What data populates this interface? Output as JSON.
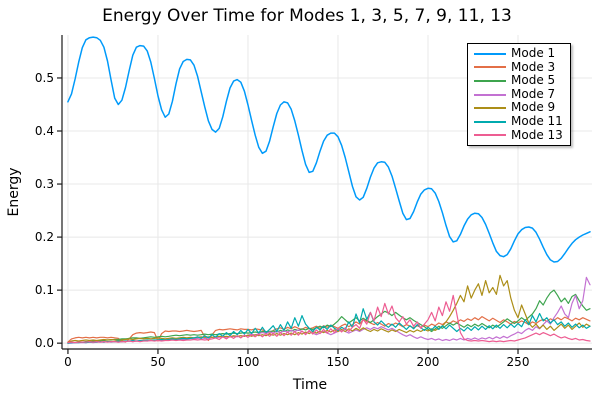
{
  "chart_data": {
    "type": "line",
    "title": "Energy Over Time for Modes 1, 3, 5, 7, 9, 11, 13",
    "xlabel": "Time",
    "ylabel": "Energy",
    "xlim": [
      -3.3,
      291.1
    ],
    "ylim": [
      -0.011,
      0.581
    ],
    "xticks": [
      0,
      50,
      100,
      150,
      200,
      250
    ],
    "xtick_labels": [
      "0",
      "50",
      "100",
      "150",
      "200",
      "250"
    ],
    "yticks": [
      0.0,
      0.1,
      0.2,
      0.3,
      0.4,
      0.5
    ],
    "ytick_labels": [
      "0.0",
      "0.1",
      "0.2",
      "0.3",
      "0.4",
      "0.5"
    ],
    "grid": true,
    "grid_color": "#e8e8e8",
    "spine_color": "#1a1a1a",
    "legend_position": "top-right",
    "x_start": 0,
    "x_step": 2,
    "series": [
      {
        "name": "Mode 1",
        "color": "#009AFA",
        "values": [
          0.455,
          0.47,
          0.498,
          0.53,
          0.557,
          0.572,
          0.576,
          0.577,
          0.576,
          0.571,
          0.558,
          0.532,
          0.496,
          0.462,
          0.45,
          0.458,
          0.482,
          0.514,
          0.543,
          0.558,
          0.561,
          0.56,
          0.551,
          0.53,
          0.499,
          0.466,
          0.44,
          0.426,
          0.432,
          0.456,
          0.489,
          0.517,
          0.531,
          0.535,
          0.534,
          0.524,
          0.503,
          0.474,
          0.445,
          0.419,
          0.403,
          0.398,
          0.405,
          0.427,
          0.456,
          0.481,
          0.494,
          0.497,
          0.492,
          0.475,
          0.449,
          0.42,
          0.392,
          0.369,
          0.358,
          0.362,
          0.381,
          0.408,
          0.433,
          0.449,
          0.455,
          0.453,
          0.441,
          0.419,
          0.392,
          0.363,
          0.337,
          0.322,
          0.324,
          0.34,
          0.362,
          0.381,
          0.392,
          0.396,
          0.396,
          0.389,
          0.373,
          0.35,
          0.323,
          0.296,
          0.276,
          0.27,
          0.275,
          0.292,
          0.313,
          0.33,
          0.34,
          0.342,
          0.341,
          0.332,
          0.315,
          0.292,
          0.268,
          0.245,
          0.233,
          0.235,
          0.248,
          0.266,
          0.281,
          0.289,
          0.292,
          0.291,
          0.283,
          0.267,
          0.246,
          0.222,
          0.201,
          0.191,
          0.193,
          0.205,
          0.221,
          0.234,
          0.242,
          0.245,
          0.244,
          0.237,
          0.224,
          0.207,
          0.189,
          0.173,
          0.165,
          0.163,
          0.167,
          0.178,
          0.193,
          0.206,
          0.214,
          0.218,
          0.219,
          0.217,
          0.209,
          0.196,
          0.181,
          0.167,
          0.157,
          0.153,
          0.154,
          0.16,
          0.169,
          0.179,
          0.188,
          0.195,
          0.2,
          0.204,
          0.207,
          0.21
        ]
      },
      {
        "name": "Mode 3",
        "color": "#E36F47",
        "values": [
          0.002,
          0.008,
          0.01,
          0.011,
          0.01,
          0.011,
          0.01,
          0.011,
          0.01,
          0.011,
          0.011,
          0.01,
          0.011,
          0.01,
          0.009,
          0.004,
          0.002,
          0.008,
          0.016,
          0.019,
          0.02,
          0.019,
          0.02,
          0.021,
          0.02,
          0.004,
          0.018,
          0.023,
          0.022,
          0.023,
          0.023,
          0.022,
          0.023,
          0.024,
          0.023,
          0.022,
          0.023,
          0.024,
          0.012,
          0.005,
          0.016,
          0.024,
          0.026,
          0.025,
          0.026,
          0.027,
          0.026,
          0.025,
          0.027,
          0.026,
          0.026,
          0.025,
          0.027,
          0.026,
          0.025,
          0.022,
          0.018,
          0.024,
          0.027,
          0.029,
          0.026,
          0.03,
          0.027,
          0.031,
          0.028,
          0.026,
          0.03,
          0.027,
          0.029,
          0.032,
          0.028,
          0.033,
          0.03,
          0.034,
          0.031,
          0.028,
          0.033,
          0.036,
          0.031,
          0.035,
          0.04,
          0.036,
          0.044,
          0.041,
          0.038,
          0.035,
          0.039,
          0.036,
          0.032,
          0.037,
          0.034,
          0.038,
          0.035,
          0.031,
          0.035,
          0.032,
          0.029,
          0.033,
          0.03,
          0.034,
          0.031,
          0.036,
          0.033,
          0.038,
          0.035,
          0.04,
          0.037,
          0.042,
          0.039,
          0.044,
          0.041,
          0.046,
          0.043,
          0.048,
          0.044,
          0.05,
          0.046,
          0.042,
          0.047,
          0.043,
          0.039,
          0.044,
          0.04,
          0.036,
          0.041,
          0.038,
          0.042,
          0.039,
          0.035,
          0.04,
          0.037,
          0.042,
          0.045,
          0.041,
          0.046,
          0.043,
          0.048,
          0.044,
          0.049,
          0.046,
          0.042,
          0.047,
          0.044,
          0.048,
          0.045,
          0.042
        ]
      },
      {
        "name": "Mode 5",
        "color": "#3DA44E",
        "values": [
          0.0,
          0.001,
          0.001,
          0.002,
          0.002,
          0.003,
          0.003,
          0.004,
          0.004,
          0.005,
          0.005,
          0.006,
          0.006,
          0.007,
          0.007,
          0.008,
          0.008,
          0.009,
          0.01,
          0.01,
          0.009,
          0.01,
          0.011,
          0.012,
          0.011,
          0.012,
          0.013,
          0.012,
          0.013,
          0.014,
          0.015,
          0.014,
          0.015,
          0.016,
          0.015,
          0.016,
          0.015,
          0.016,
          0.017,
          0.016,
          0.017,
          0.016,
          0.017,
          0.018,
          0.017,
          0.018,
          0.019,
          0.018,
          0.019,
          0.02,
          0.019,
          0.02,
          0.021,
          0.02,
          0.022,
          0.021,
          0.022,
          0.023,
          0.021,
          0.024,
          0.022,
          0.025,
          0.023,
          0.026,
          0.024,
          0.027,
          0.025,
          0.028,
          0.026,
          0.029,
          0.032,
          0.029,
          0.034,
          0.031,
          0.036,
          0.042,
          0.05,
          0.044,
          0.038,
          0.043,
          0.048,
          0.042,
          0.047,
          0.043,
          0.039,
          0.044,
          0.05,
          0.055,
          0.06,
          0.057,
          0.052,
          0.058,
          0.053,
          0.048,
          0.044,
          0.048,
          0.043,
          0.039,
          0.035,
          0.031,
          0.026,
          0.022,
          0.027,
          0.032,
          0.028,
          0.033,
          0.038,
          0.034,
          0.038,
          0.034,
          0.03,
          0.035,
          0.031,
          0.036,
          0.032,
          0.037,
          0.033,
          0.029,
          0.034,
          0.03,
          0.035,
          0.04,
          0.046,
          0.041,
          0.037,
          0.042,
          0.048,
          0.043,
          0.049,
          0.055,
          0.065,
          0.08,
          0.072,
          0.085,
          0.095,
          0.1,
          0.09,
          0.078,
          0.085,
          0.075,
          0.088,
          0.092,
          0.08,
          0.07,
          0.062,
          0.065
        ]
      },
      {
        "name": "Mode 7",
        "color": "#C371D2",
        "values": [
          0.0,
          0.0,
          0.001,
          0.001,
          0.001,
          0.001,
          0.002,
          0.001,
          0.002,
          0.002,
          0.002,
          0.003,
          0.002,
          0.003,
          0.002,
          0.003,
          0.003,
          0.004,
          0.003,
          0.004,
          0.004,
          0.005,
          0.004,
          0.005,
          0.005,
          0.006,
          0.005,
          0.006,
          0.006,
          0.007,
          0.007,
          0.008,
          0.007,
          0.008,
          0.009,
          0.008,
          0.009,
          0.01,
          0.009,
          0.01,
          0.011,
          0.01,
          0.011,
          0.012,
          0.011,
          0.012,
          0.013,
          0.012,
          0.014,
          0.013,
          0.015,
          0.017,
          0.015,
          0.018,
          0.02,
          0.018,
          0.021,
          0.019,
          0.022,
          0.02,
          0.023,
          0.021,
          0.024,
          0.022,
          0.025,
          0.022,
          0.019,
          0.022,
          0.019,
          0.016,
          0.019,
          0.022,
          0.019,
          0.016,
          0.019,
          0.022,
          0.025,
          0.022,
          0.019,
          0.022,
          0.025,
          0.022,
          0.026,
          0.029,
          0.026,
          0.03,
          0.027,
          0.031,
          0.028,
          0.025,
          0.028,
          0.024,
          0.02,
          0.016,
          0.013,
          0.016,
          0.012,
          0.009,
          0.012,
          0.009,
          0.007,
          0.009,
          0.006,
          0.008,
          0.005,
          0.007,
          0.005,
          0.008,
          0.006,
          0.009,
          0.006,
          0.009,
          0.007,
          0.01,
          0.007,
          0.01,
          0.008,
          0.011,
          0.008,
          0.012,
          0.009,
          0.013,
          0.01,
          0.014,
          0.017,
          0.021,
          0.018,
          0.024,
          0.028,
          0.024,
          0.031,
          0.027,
          0.035,
          0.042,
          0.036,
          0.048,
          0.058,
          0.07,
          0.055,
          0.048,
          0.075,
          0.09,
          0.065,
          0.08,
          0.124,
          0.11
        ]
      },
      {
        "name": "Mode 9",
        "color": "#AC8E18",
        "values": [
          0.001,
          0.004,
          0.005,
          0.004,
          0.005,
          0.006,
          0.005,
          0.006,
          0.005,
          0.006,
          0.007,
          0.006,
          0.007,
          0.006,
          0.005,
          0.006,
          0.007,
          0.008,
          0.007,
          0.008,
          0.009,
          0.008,
          0.009,
          0.008,
          0.009,
          0.01,
          0.009,
          0.008,
          0.009,
          0.01,
          0.009,
          0.01,
          0.011,
          0.01,
          0.011,
          0.01,
          0.011,
          0.012,
          0.011,
          0.012,
          0.011,
          0.012,
          0.013,
          0.012,
          0.013,
          0.012,
          0.014,
          0.013,
          0.014,
          0.013,
          0.015,
          0.013,
          0.016,
          0.014,
          0.016,
          0.014,
          0.017,
          0.015,
          0.018,
          0.015,
          0.018,
          0.016,
          0.019,
          0.016,
          0.02,
          0.017,
          0.021,
          0.018,
          0.022,
          0.019,
          0.023,
          0.02,
          0.024,
          0.021,
          0.025,
          0.022,
          0.026,
          0.022,
          0.027,
          0.023,
          0.028,
          0.024,
          0.029,
          0.025,
          0.022,
          0.026,
          0.023,
          0.027,
          0.024,
          0.021,
          0.025,
          0.022,
          0.026,
          0.023,
          0.02,
          0.024,
          0.021,
          0.025,
          0.022,
          0.026,
          0.023,
          0.027,
          0.024,
          0.028,
          0.032,
          0.04,
          0.05,
          0.062,
          0.075,
          0.09,
          0.078,
          0.108,
          0.085,
          0.1,
          0.112,
          0.09,
          0.118,
          0.095,
          0.105,
          0.092,
          0.128,
          0.108,
          0.118,
          0.085,
          0.062,
          0.048,
          0.072,
          0.055,
          0.038,
          0.03,
          0.036,
          0.028,
          0.034,
          0.026,
          0.032,
          0.024,
          0.03,
          0.036,
          0.028,
          0.034,
          0.026,
          0.032,
          0.038,
          0.03,
          0.036,
          0.032
        ]
      },
      {
        "name": "Mode 11",
        "color": "#00AAAE",
        "values": [
          0.0,
          0.001,
          0.001,
          0.001,
          0.002,
          0.001,
          0.002,
          0.002,
          0.002,
          0.003,
          0.002,
          0.003,
          0.003,
          0.003,
          0.004,
          0.003,
          0.004,
          0.004,
          0.005,
          0.004,
          0.005,
          0.005,
          0.006,
          0.005,
          0.006,
          0.006,
          0.007,
          0.006,
          0.007,
          0.008,
          0.007,
          0.008,
          0.009,
          0.008,
          0.009,
          0.01,
          0.012,
          0.009,
          0.014,
          0.01,
          0.016,
          0.011,
          0.018,
          0.013,
          0.02,
          0.014,
          0.022,
          0.016,
          0.024,
          0.017,
          0.026,
          0.018,
          0.028,
          0.019,
          0.03,
          0.02,
          0.026,
          0.033,
          0.022,
          0.035,
          0.024,
          0.04,
          0.028,
          0.048,
          0.032,
          0.052,
          0.036,
          0.028,
          0.022,
          0.03,
          0.025,
          0.032,
          0.026,
          0.034,
          0.028,
          0.024,
          0.03,
          0.026,
          0.04,
          0.03,
          0.055,
          0.038,
          0.065,
          0.045,
          0.058,
          0.04,
          0.034,
          0.042,
          0.035,
          0.03,
          0.036,
          0.03,
          0.038,
          0.032,
          0.026,
          0.033,
          0.027,
          0.035,
          0.029,
          0.024,
          0.03,
          0.025,
          0.032,
          0.026,
          0.033,
          0.027,
          0.034,
          0.028,
          0.022,
          0.028,
          0.023,
          0.03,
          0.024,
          0.031,
          0.025,
          0.032,
          0.026,
          0.033,
          0.027,
          0.034,
          0.028,
          0.035,
          0.029,
          0.036,
          0.03,
          0.037,
          0.031,
          0.044,
          0.035,
          0.052,
          0.04,
          0.056,
          0.042,
          0.048,
          0.038,
          0.044,
          0.035,
          0.04,
          0.032,
          0.038,
          0.03,
          0.036,
          0.029,
          0.034,
          0.028,
          0.032
        ]
      },
      {
        "name": "Mode 13",
        "color": "#ED5D92",
        "values": [
          0.001,
          0.002,
          0.001,
          0.002,
          0.002,
          0.002,
          0.003,
          0.002,
          0.003,
          0.002,
          0.003,
          0.002,
          0.003,
          0.003,
          0.002,
          0.003,
          0.003,
          0.004,
          0.003,
          0.004,
          0.003,
          0.004,
          0.004,
          0.005,
          0.004,
          0.005,
          0.004,
          0.005,
          0.005,
          0.006,
          0.005,
          0.006,
          0.005,
          0.006,
          0.006,
          0.007,
          0.006,
          0.007,
          0.006,
          0.007,
          0.008,
          0.01,
          0.007,
          0.012,
          0.008,
          0.013,
          0.009,
          0.014,
          0.01,
          0.015,
          0.011,
          0.016,
          0.012,
          0.017,
          0.012,
          0.018,
          0.013,
          0.019,
          0.013,
          0.02,
          0.014,
          0.021,
          0.015,
          0.022,
          0.015,
          0.023,
          0.016,
          0.024,
          0.017,
          0.025,
          0.018,
          0.026,
          0.019,
          0.027,
          0.02,
          0.028,
          0.021,
          0.029,
          0.022,
          0.03,
          0.035,
          0.028,
          0.045,
          0.036,
          0.058,
          0.042,
          0.068,
          0.05,
          0.075,
          0.055,
          0.07,
          0.048,
          0.04,
          0.05,
          0.036,
          0.044,
          0.032,
          0.04,
          0.028,
          0.036,
          0.044,
          0.058,
          0.042,
          0.068,
          0.052,
          0.078,
          0.06,
          0.09,
          0.055,
          0.02,
          0.008,
          0.005,
          0.004,
          0.005,
          0.004,
          0.005,
          0.004,
          0.003,
          0.004,
          0.003,
          0.004,
          0.003,
          0.004,
          0.005,
          0.004,
          0.006,
          0.008,
          0.01,
          0.013,
          0.016,
          0.019,
          0.016,
          0.02,
          0.017,
          0.014,
          0.017,
          0.013,
          0.01,
          0.012,
          0.009,
          0.007,
          0.009,
          0.006,
          0.007,
          0.005,
          0.004
        ]
      }
    ]
  }
}
